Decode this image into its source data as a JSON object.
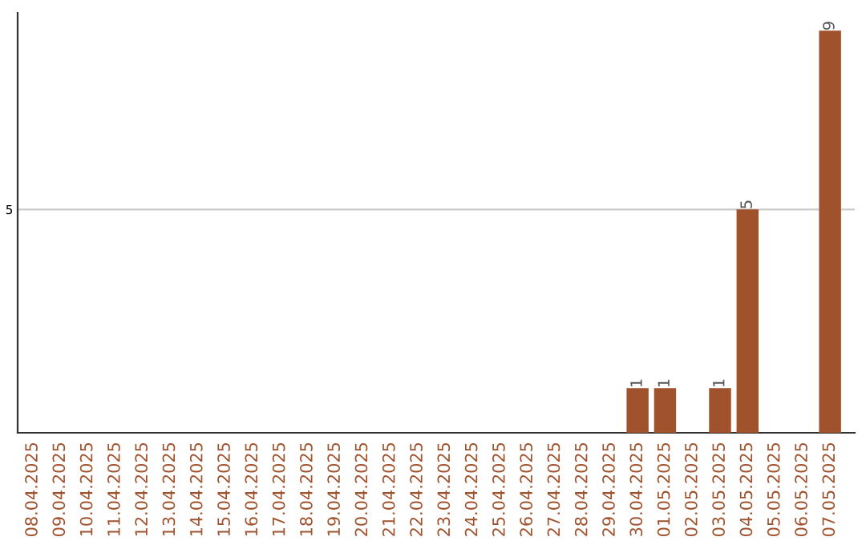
{
  "chart_data": {
    "type": "bar",
    "categories": [
      "08.04.2025",
      "09.04.2025",
      "10.04.2025",
      "11.04.2025",
      "12.04.2025",
      "13.04.2025",
      "14.04.2025",
      "15.04.2025",
      "16.04.2025",
      "17.04.2025",
      "18.04.2025",
      "19.04.2025",
      "20.04.2025",
      "21.04.2025",
      "22.04.2025",
      "23.04.2025",
      "24.04.2025",
      "25.04.2025",
      "26.04.2025",
      "27.04.2025",
      "28.04.2025",
      "29.04.2025",
      "30.04.2025",
      "01.05.2025",
      "02.05.2025",
      "03.05.2025",
      "04.05.2025",
      "05.05.2025",
      "06.05.2025",
      "07.05.2025"
    ],
    "values": [
      null,
      null,
      null,
      null,
      null,
      null,
      null,
      null,
      null,
      null,
      null,
      null,
      null,
      null,
      null,
      null,
      null,
      null,
      null,
      null,
      null,
      null,
      1,
      1,
      null,
      1,
      5,
      null,
      null,
      9
    ],
    "data_labels": true,
    "color": "#a0522d",
    "ylim": [
      0,
      9.4
    ],
    "yticks": [
      5
    ],
    "grid": "y"
  }
}
